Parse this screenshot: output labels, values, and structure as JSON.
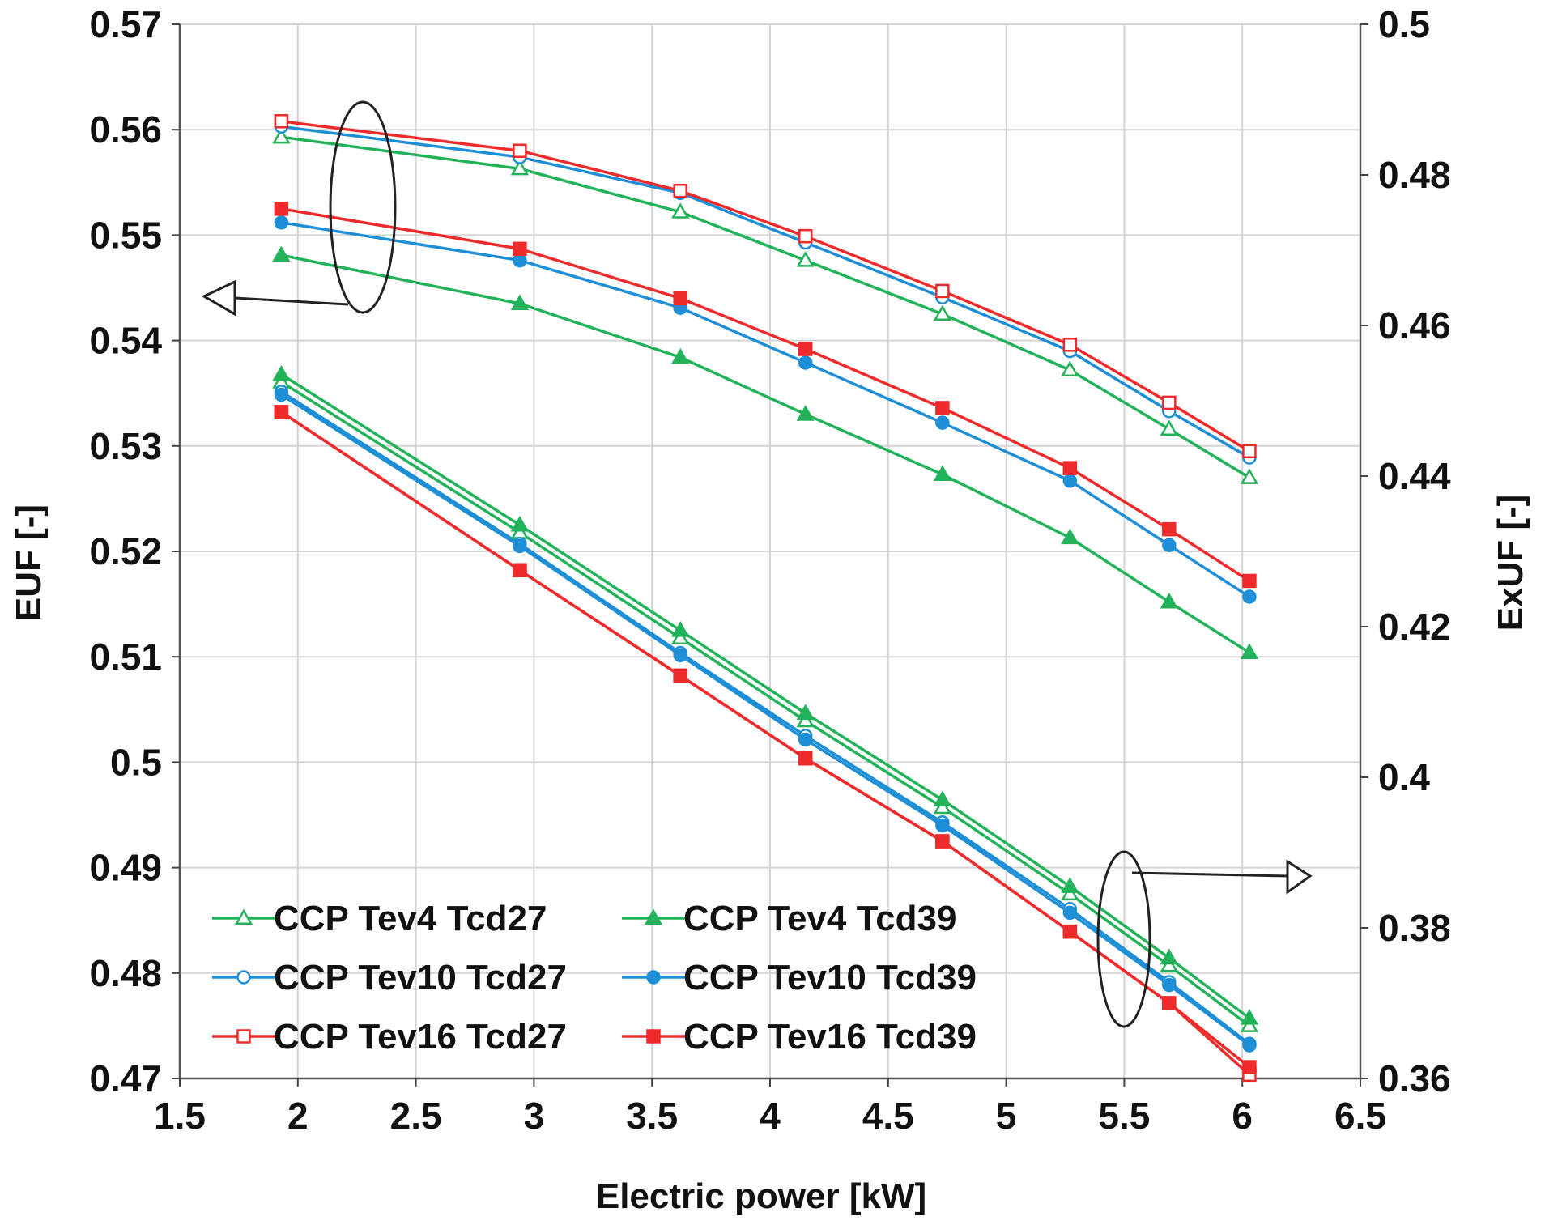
{
  "chart_data": {
    "type": "line",
    "title": "",
    "xlabel": "Electric power [kW]",
    "ylabel_left": "EUF [-]",
    "ylabel_right": "ExUF [-]",
    "xlim": [
      1.5,
      6.5
    ],
    "ylim_left": [
      0.47,
      0.57
    ],
    "ylim_right": [
      0.36,
      0.5
    ],
    "x_ticks": [
      "1.5",
      "2",
      "2.5",
      "3",
      "3.5",
      "4",
      "4.5",
      "5",
      "5.5",
      "6",
      "6.5"
    ],
    "y_ticks_left": [
      "0.47",
      "0.48",
      "0.49",
      "0.5",
      "0.51",
      "0.52",
      "0.53",
      "0.54",
      "0.55",
      "0.56",
      "0.57"
    ],
    "y_ticks_right": [
      "0.36",
      "0.38",
      "0.4",
      "0.42",
      "0.44",
      "0.46",
      "0.48",
      "0.5"
    ],
    "grid": true,
    "legend_position": "bottom-left",
    "x": [
      1.93,
      2.94,
      3.62,
      4.15,
      4.73,
      5.27,
      5.69,
      6.03
    ],
    "series": [
      {
        "name": "CCP Tev4 Tcd27",
        "axis": "left",
        "color": "#22b35a",
        "marker": "triangle-open",
        "values": [
          0.5593,
          0.5563,
          0.5522,
          0.5476,
          0.5425,
          0.5372,
          0.5316,
          0.527
        ]
      },
      {
        "name": "CCP Tev10 Tcd27",
        "axis": "left",
        "color": "#1e8fd6",
        "marker": "circle-open",
        "values": [
          0.5603,
          0.5574,
          0.554,
          0.5493,
          0.5441,
          0.539,
          0.5333,
          0.5289
        ]
      },
      {
        "name": "CCP Tev16 Tcd27",
        "axis": "left",
        "color": "#ee2a2a",
        "marker": "square-open",
        "values": [
          0.5608,
          0.558,
          0.5542,
          0.5499,
          0.5447,
          0.5396,
          0.5341,
          0.5295
        ]
      },
      {
        "name": "CCP Tev4 Tcd39",
        "axis": "left",
        "color": "#22b35a",
        "marker": "triangle-filled",
        "values": [
          0.5481,
          0.5435,
          0.5384,
          0.533,
          0.5273,
          0.5213,
          0.5152,
          0.5104
        ]
      },
      {
        "name": "CCP Tev10 Tcd39",
        "axis": "left",
        "color": "#1e8fd6",
        "marker": "circle-filled",
        "values": [
          0.5512,
          0.5476,
          0.5431,
          0.5379,
          0.5322,
          0.5267,
          0.5206,
          0.5157
        ]
      },
      {
        "name": "CCP Tev16 Tcd39",
        "axis": "left",
        "color": "#ee2a2a",
        "marker": "square-filled",
        "values": [
          0.5525,
          0.5487,
          0.544,
          0.5392,
          0.5336,
          0.5279,
          0.5221,
          0.5172
        ]
      },
      {
        "name": "CCP Tev4 Tcd27",
        "axis": "right",
        "color": "#22b35a",
        "marker": "triangle-open",
        "values": [
          0.4525,
          0.4325,
          0.4185,
          0.4075,
          0.396,
          0.3845,
          0.375,
          0.367
        ]
      },
      {
        "name": "CCP Tev4 Tcd39",
        "axis": "right",
        "color": "#22b35a",
        "marker": "triangle-filled",
        "values": [
          0.4535,
          0.4335,
          0.4195,
          0.4085,
          0.397,
          0.3855,
          0.376,
          0.368
        ]
      },
      {
        "name": "CCP Tev10 Tcd27",
        "axis": "right",
        "color": "#1e8fd6",
        "marker": "circle-open",
        "values": [
          0.4512,
          0.431,
          0.4165,
          0.4055,
          0.394,
          0.3825,
          0.3728,
          0.3646
        ]
      },
      {
        "name": "CCP Tev10 Tcd39",
        "axis": "right",
        "color": "#1e8fd6",
        "marker": "circle-filled",
        "values": [
          0.4508,
          0.4307,
          0.4162,
          0.405,
          0.3936,
          0.382,
          0.3724,
          0.3644
        ]
      },
      {
        "name": "CCP Tev16 Tcd27",
        "axis": "right",
        "color": "#ee2a2a",
        "marker": "square-open",
        "values": [
          0.4485,
          0.4275,
          0.4135,
          0.4025,
          0.3915,
          0.3795,
          0.37,
          0.3605
        ]
      },
      {
        "name": "CCP Tev16 Tcd39",
        "axis": "right",
        "color": "#ee2a2a",
        "marker": "square-filled",
        "values": [
          0.4485,
          0.4275,
          0.4135,
          0.4025,
          0.3915,
          0.3795,
          0.37,
          0.3615
        ]
      }
    ],
    "legend": [
      {
        "name": "CCP Tev4 Tcd27",
        "color": "#22b35a",
        "marker": "triangle-open"
      },
      {
        "name": "CCP Tev4 Tcd39",
        "color": "#22b35a",
        "marker": "triangle-filled"
      },
      {
        "name": "CCP Tev10 Tcd27",
        "color": "#1e8fd6",
        "marker": "circle-open"
      },
      {
        "name": "CCP Tev10 Tcd39",
        "color": "#1e8fd6",
        "marker": "circle-filled"
      },
      {
        "name": "CCP Tev16 Tcd27",
        "color": "#ee2a2a",
        "marker": "square-open"
      },
      {
        "name": "CCP Tev16 Tcd39",
        "color": "#ee2a2a",
        "marker": "square-filled"
      }
    ]
  }
}
